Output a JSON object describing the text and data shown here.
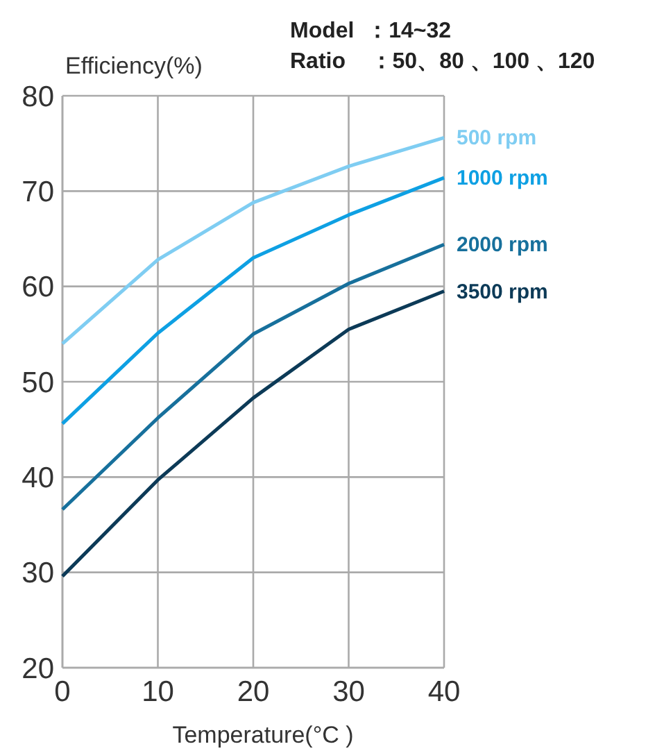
{
  "chart_data": {
    "type": "line",
    "ylabel": "Efficiency(%)",
    "xlabel": "Temperature(°C )",
    "annotations": [
      "Model  ：14~32",
      "Ratio    ：50、80 、100 、120"
    ],
    "x": [
      0,
      10,
      20,
      30,
      40
    ],
    "xlim": [
      0,
      40
    ],
    "xticks": [
      0,
      10,
      20,
      30,
      40
    ],
    "ylim": [
      20,
      80
    ],
    "yticks": [
      20,
      30,
      40,
      50,
      60,
      70,
      80
    ],
    "grid": true,
    "marker": "none",
    "line_style": "solid",
    "series": [
      {
        "name": "500 rpm",
        "color": "#7fcdf2",
        "values": [
          54,
          62.8,
          68.8,
          72.6,
          75.6
        ]
      },
      {
        "name": "1000 rpm",
        "color": "#0ea0e3",
        "values": [
          45.6,
          55.1,
          63,
          67.5,
          71.4
        ]
      },
      {
        "name": "2000 rpm",
        "color": "#17709c",
        "values": [
          36.6,
          46.2,
          55,
          60.3,
          64.4
        ]
      },
      {
        "name": "3500 rpm",
        "color": "#0c3a57",
        "values": [
          29.6,
          39.7,
          48.3,
          55.5,
          59.5
        ]
      }
    ]
  }
}
